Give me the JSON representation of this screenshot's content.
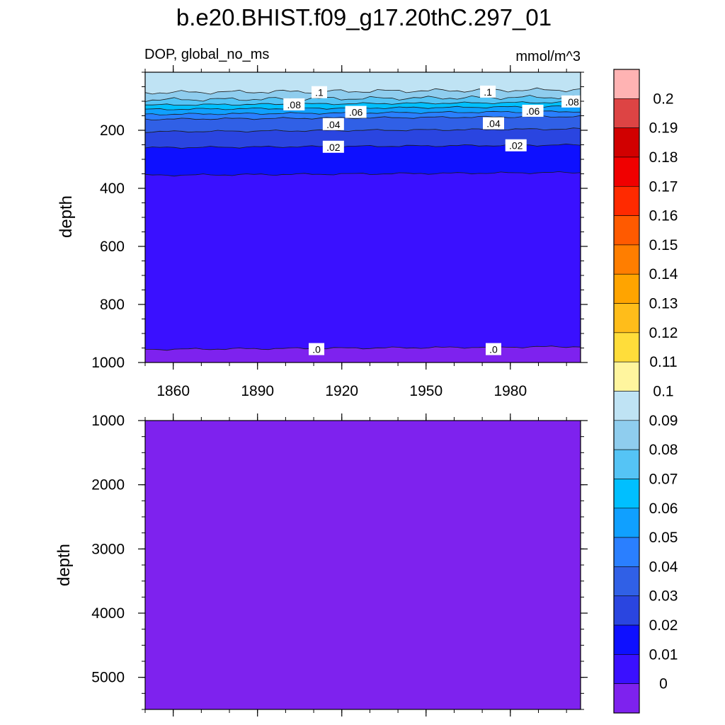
{
  "chart_data": {
    "type": "heatmap",
    "title": "b.e20.BHIST.f09_g17.20thC.297_01",
    "subtitle_left": "DOP, global_no_ms",
    "subtitle_right": "mmol/m^3",
    "ylabel": "depth",
    "x_ticks": [
      "1860",
      "1890",
      "1920",
      "1950",
      "1980"
    ],
    "x_tick_values": [
      1860,
      1890,
      1920,
      1950,
      1980
    ],
    "xlim": [
      1850,
      2005
    ],
    "top_panel": {
      "ylim": [
        0,
        1000
      ],
      "y_ticks": [
        "200",
        "400",
        "600",
        "800",
        "1000"
      ],
      "y_tick_values": [
        200,
        400,
        600,
        800,
        1000
      ]
    },
    "bottom_panel": {
      "ylim": [
        1000,
        5500
      ],
      "y_ticks": [
        "1000",
        "2000",
        "3000",
        "4000",
        "5000"
      ],
      "y_tick_values": [
        1000,
        2000,
        3000,
        4000,
        5000
      ]
    },
    "contour_labels": [
      {
        "text": ".1",
        "year": 1912,
        "depth": 70
      },
      {
        "text": ".1",
        "year": 1972,
        "depth": 68
      },
      {
        "text": ".08",
        "year": 1903,
        "depth": 112
      },
      {
        "text": ".08",
        "year": 2002,
        "depth": 102
      },
      {
        "text": ".06",
        "year": 1925,
        "depth": 138
      },
      {
        "text": ".06",
        "year": 1988,
        "depth": 134
      },
      {
        "text": ".04",
        "year": 1917,
        "depth": 180
      },
      {
        "text": ".04",
        "year": 1974,
        "depth": 177
      },
      {
        "text": ".02",
        "year": 1917,
        "depth": 258
      },
      {
        "text": ".02",
        "year": 1982,
        "depth": 253
      },
      {
        "text": ".0",
        "year": 1911,
        "depth": 955
      },
      {
        "text": ".0",
        "year": 1974,
        "depth": 955
      }
    ],
    "bands": [
      {
        "level": 0.1,
        "depth_bottom": 70
      },
      {
        "level": 0.09,
        "depth_bottom": 95
      },
      {
        "level": 0.08,
        "depth_bottom": 113
      },
      {
        "level": 0.07,
        "depth_bottom": 128
      },
      {
        "level": 0.06,
        "depth_bottom": 145
      },
      {
        "level": 0.05,
        "depth_bottom": 162
      },
      {
        "level": 0.04,
        "depth_bottom": 205
      },
      {
        "level": 0.03,
        "depth_bottom": 260
      },
      {
        "level": 0.02,
        "depth_bottom": 355
      },
      {
        "level": 0.01,
        "depth_bottom": 955
      },
      {
        "level": 0.0,
        "depth_bottom": 5500
      }
    ],
    "colorbar": {
      "labels": [
        "0.2",
        "0.19",
        "0.18",
        "0.17",
        "0.16",
        "0.15",
        "0.14",
        "0.13",
        "0.12",
        "0.11",
        "0.1",
        "0.09",
        "0.08",
        "0.07",
        "0.06",
        "0.05",
        "0.04",
        "0.03",
        "0.02",
        "0.01",
        "0"
      ],
      "colors_top_to_bottom": [
        "#ffb3b3",
        "#dd4444",
        "#d10000",
        "#f00000",
        "#ff2a00",
        "#ff5a00",
        "#ff7e00",
        "#ffa400",
        "#ffbd1a",
        "#ffdd3a",
        "#fff59e",
        "#bfe3f4",
        "#8fcdee",
        "#55c4f5",
        "#00bfff",
        "#10a0ff",
        "#2a7fff",
        "#3060e6",
        "#2a45e0",
        "#0e10ff",
        "#3a10ff",
        "#7e22ee"
      ]
    }
  }
}
